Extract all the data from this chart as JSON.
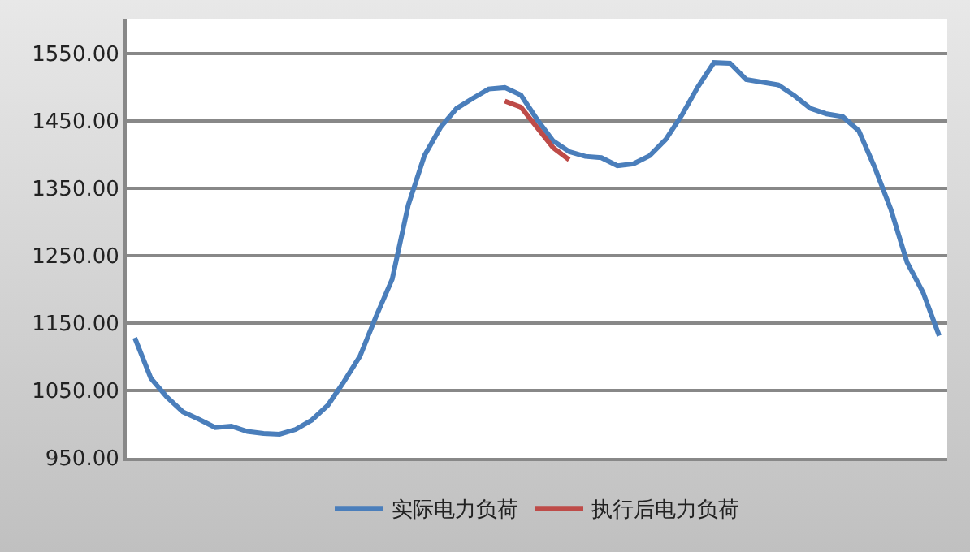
{
  "chart_data": {
    "type": "line",
    "categories": [
      null,
      null,
      null,
      null,
      null,
      null,
      null,
      null,
      null,
      null,
      null,
      null,
      null,
      null,
      null,
      null,
      null,
      null,
      null,
      null,
      null,
      null,
      null,
      null,
      null,
      null,
      null,
      null,
      null,
      null,
      null,
      null,
      null,
      null,
      null,
      null,
      null,
      null,
      null,
      null,
      null,
      null,
      null,
      null,
      null,
      null,
      null,
      null,
      null,
      null,
      null
    ],
    "series": [
      {
        "name": "实际电力负荷",
        "color": "#4a7ebb",
        "values": [
          1128,
          1068,
          1040,
          1018,
          1007,
          995,
          997,
          989,
          986,
          985,
          992,
          1006,
          1028,
          1063,
          1101,
          1160,
          1215,
          1325,
          1398,
          1440,
          1468,
          1483,
          1497,
          1499,
          1488,
          1452,
          1420,
          1404,
          1397,
          1395,
          1383,
          1386,
          1398,
          1422,
          1458,
          1500,
          1536,
          1535,
          1511,
          1507,
          1503,
          1487,
          1468,
          1460,
          1456,
          1435,
          1380,
          1318,
          1240,
          1195,
          1131
        ]
      },
      {
        "name": "执行后电力负荷",
        "color": "#be4b48",
        "values": [
          null,
          null,
          null,
          null,
          null,
          null,
          null,
          null,
          null,
          null,
          null,
          null,
          null,
          null,
          null,
          null,
          null,
          null,
          null,
          null,
          null,
          null,
          null,
          1479,
          1470,
          1440,
          1410,
          1392,
          null,
          null,
          null,
          null,
          null,
          null,
          null,
          null,
          null,
          null,
          null,
          null,
          null,
          null,
          null,
          null,
          null,
          null,
          null,
          null,
          null,
          null,
          null
        ]
      }
    ],
    "ylim": [
      950,
      1600
    ],
    "yticks": [
      {
        "value": 950,
        "label": "950.00"
      },
      {
        "value": 1050,
        "label": "1050.00"
      },
      {
        "value": 1150,
        "label": "1150.00"
      },
      {
        "value": 1250,
        "label": "1250.00"
      },
      {
        "value": 1350,
        "label": "1350.00"
      },
      {
        "value": 1450,
        "label": "1450.00"
      },
      {
        "value": 1550,
        "label": "1550.00"
      }
    ],
    "grid": "y",
    "legend": "bottom",
    "marker": "none",
    "line_style": "solid"
  }
}
